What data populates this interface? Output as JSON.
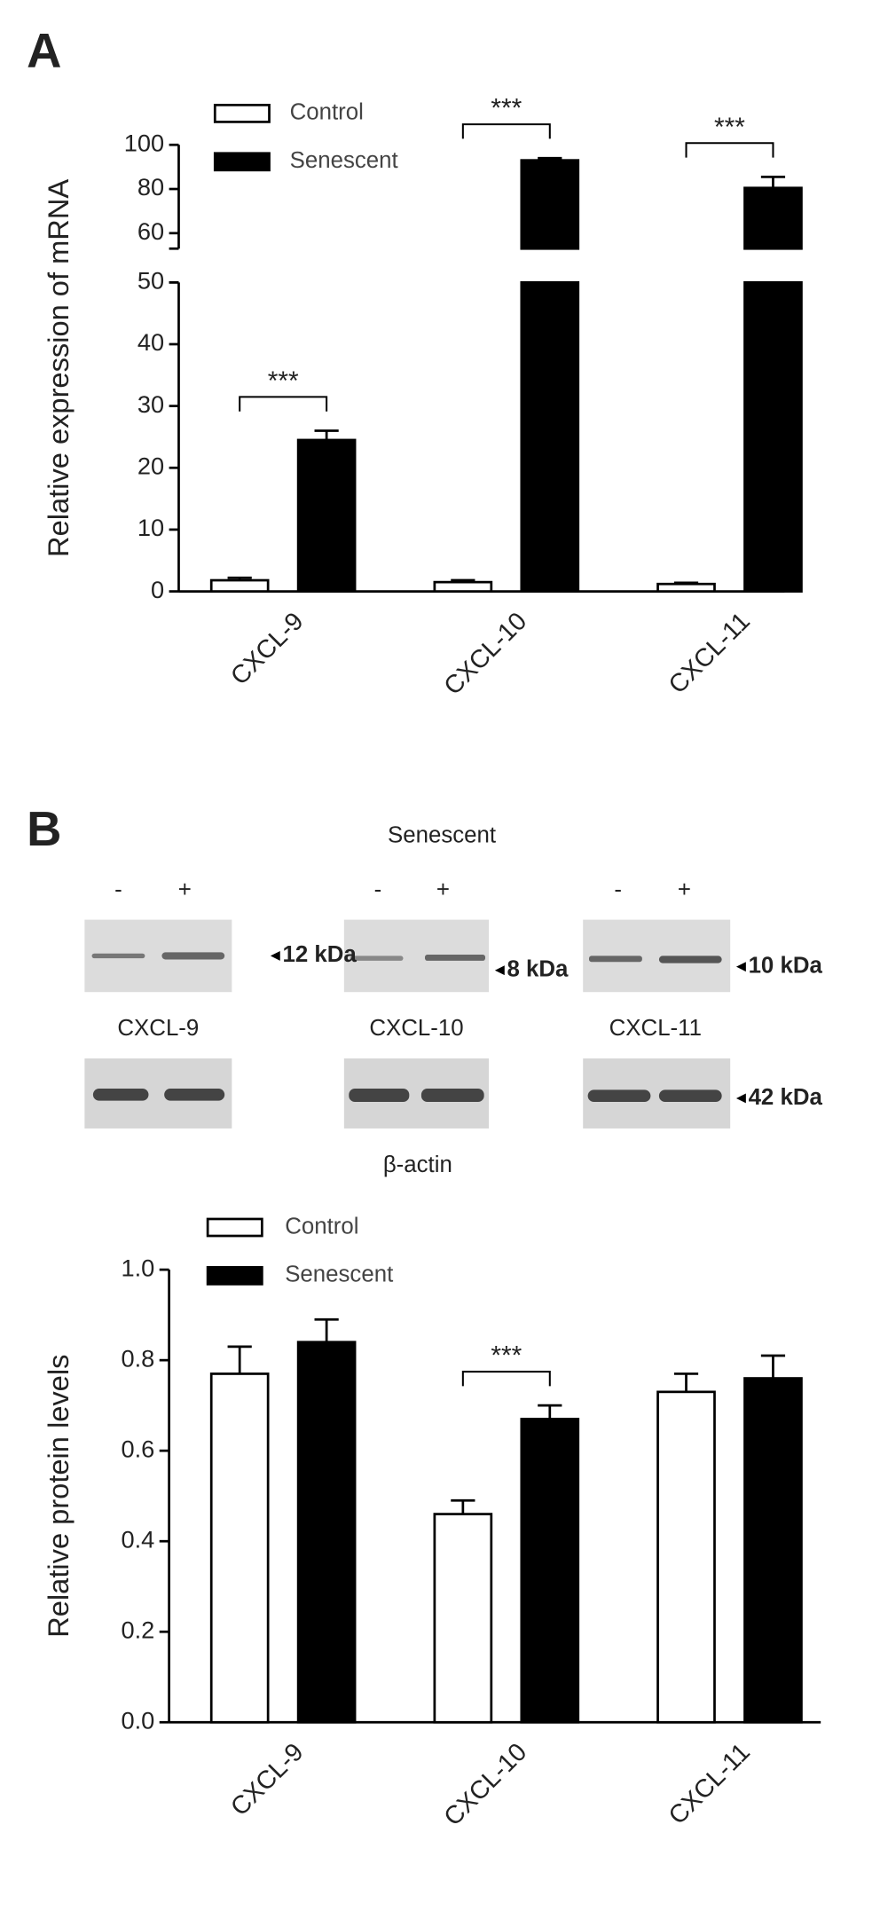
{
  "chart_data": [
    {
      "type": "bar",
      "panel": "A",
      "y_label": "Relative expression of mRNA",
      "categories": [
        "CXCL-9",
        "CXCL-10",
        "CXCL-11"
      ],
      "series": [
        {
          "name": "Control",
          "color": "#ffffff",
          "values": [
            1.8,
            1.5,
            1.2
          ],
          "errors": [
            0.4,
            0.3,
            0.2
          ]
        },
        {
          "name": "Senescent",
          "color": "#000000",
          "values": [
            24.5,
            93,
            80.5
          ],
          "errors": [
            1.5,
            1,
            5
          ]
        }
      ],
      "ylim": [
        0,
        100
      ],
      "y_break": [
        50,
        53
      ],
      "yticks": [
        0,
        10,
        20,
        30,
        40,
        50,
        60,
        80,
        100
      ],
      "significance": [
        {
          "label": "***",
          "category": 0
        },
        {
          "label": "***",
          "category": 1
        },
        {
          "label": "***",
          "category": 2
        }
      ],
      "legend": "upper left"
    },
    {
      "type": "bar",
      "panel": "B",
      "y_label": "Relative protein levels",
      "categories": [
        "CXCL-9",
        "CXCL-10",
        "CXCL-11"
      ],
      "series": [
        {
          "name": "Control",
          "color": "#ffffff",
          "values": [
            0.77,
            0.46,
            0.73
          ],
          "errors": [
            0.06,
            0.03,
            0.04
          ]
        },
        {
          "name": "Senescent",
          "color": "#000000",
          "values": [
            0.84,
            0.67,
            0.76
          ],
          "errors": [
            0.05,
            0.03,
            0.05
          ]
        }
      ],
      "ylim": [
        0,
        1
      ],
      "yticks": [
        {
          "value": 0,
          "label": "0.0"
        },
        0.2,
        0.4,
        0.6,
        0.8,
        {
          "value": 1,
          "label": "1.0"
        }
      ],
      "significance": [
        {
          "label": "***",
          "category": 1
        }
      ],
      "legend": "upper left"
    }
  ],
  "blot": {
    "condition": "Senescent",
    "lanes": [
      [
        "-",
        "+"
      ],
      [
        "-",
        "+"
      ],
      [
        "-",
        "+"
      ]
    ],
    "targets": [
      "CXCL-9",
      "CXCL-10",
      "CXCL-11"
    ],
    "sizes": [
      "12 kDa",
      "8 kDa",
      "10 kDa"
    ],
    "control": "β-actin",
    "control_size": "42 kDa"
  }
}
